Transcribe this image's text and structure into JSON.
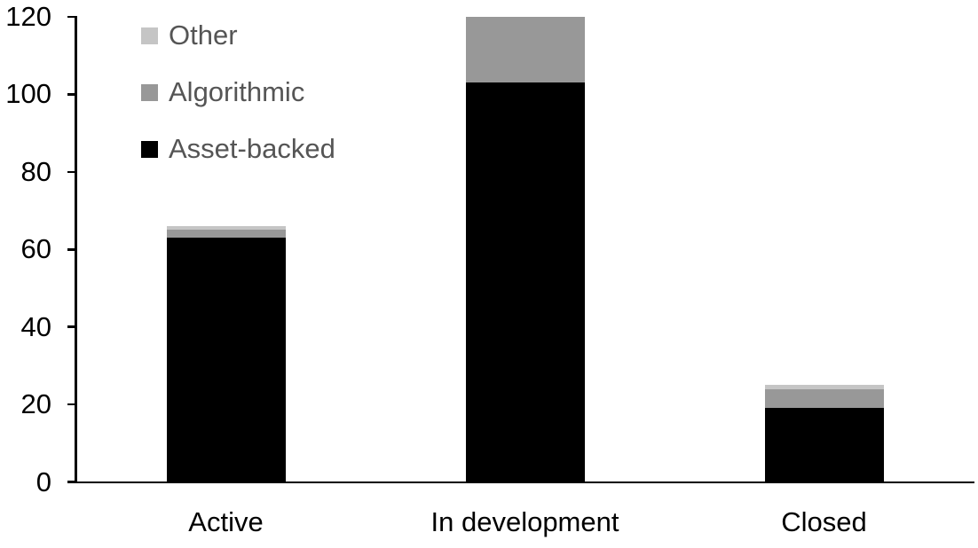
{
  "chart_data": {
    "type": "bar",
    "stacked": true,
    "title": "",
    "xlabel": "",
    "ylabel": "",
    "categories": [
      "Active",
      "In development",
      "Closed"
    ],
    "series": [
      {
        "name": "Asset-backed",
        "color": "#000000",
        "values": [
          63,
          103,
          19
        ]
      },
      {
        "name": "Algorithmic",
        "color": "#989898",
        "values": [
          2,
          17,
          5
        ]
      },
      {
        "name": "Other",
        "color": "#c5c5c5",
        "values": [
          1,
          0,
          1
        ]
      }
    ],
    "stack_totals": [
      66,
      120,
      25
    ],
    "ylim": [
      0,
      120
    ],
    "yticks": [
      0,
      20,
      40,
      60,
      80,
      100,
      120
    ],
    "grid": false,
    "legend": {
      "position": "top-left",
      "text_color": "#555555",
      "entries": [
        {
          "label": "Other",
          "color": "#c5c5c5"
        },
        {
          "label": "Algorithmic",
          "color": "#989898"
        },
        {
          "label": "Asset-backed",
          "color": "#000000"
        }
      ]
    },
    "axis_color": "#000000",
    "tick_label_color": "#000000",
    "category_label_color": "#000000",
    "background_color": "#ffffff"
  }
}
